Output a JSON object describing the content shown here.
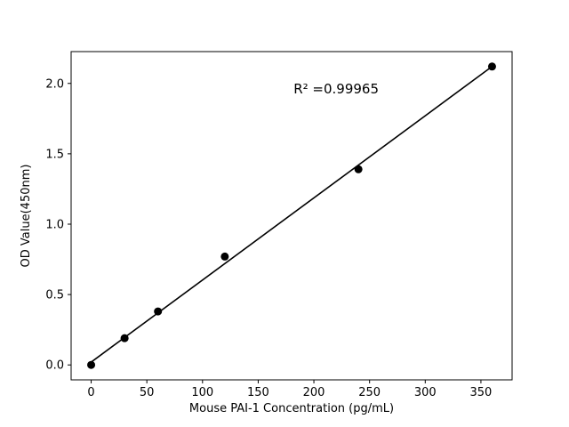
{
  "figure": {
    "background": "#ffffff"
  },
  "chart_data": {
    "type": "scatter",
    "title": "",
    "xlabel": "Mouse PAI-1 Concentration (pg/mL)",
    "ylabel": "OD Value(450nm)",
    "x": [
      0,
      30,
      60,
      120,
      240,
      360
    ],
    "y": [
      0.0,
      0.19,
      0.38,
      0.77,
      1.39,
      2.12
    ],
    "fit_line": {
      "x": [
        0,
        360
      ],
      "y": [
        0.02,
        2.12
      ]
    },
    "annotation": "R² =0.99965",
    "annotation_pos": [
      220,
      1.93
    ],
    "x_ticks": [
      "0",
      "50",
      "100",
      "150",
      "200",
      "250",
      "300",
      "350"
    ],
    "y_ticks": [
      "0.0",
      "0.5",
      "1.0",
      "1.5",
      "2.0"
    ],
    "xlim": [
      -18,
      378
    ],
    "ylim": [
      -0.106,
      2.226
    ],
    "grid": false,
    "legend": null,
    "marker_color": "#000000",
    "line_color": "#000000",
    "axis_color": "#000000",
    "background": "#ffffff"
  }
}
